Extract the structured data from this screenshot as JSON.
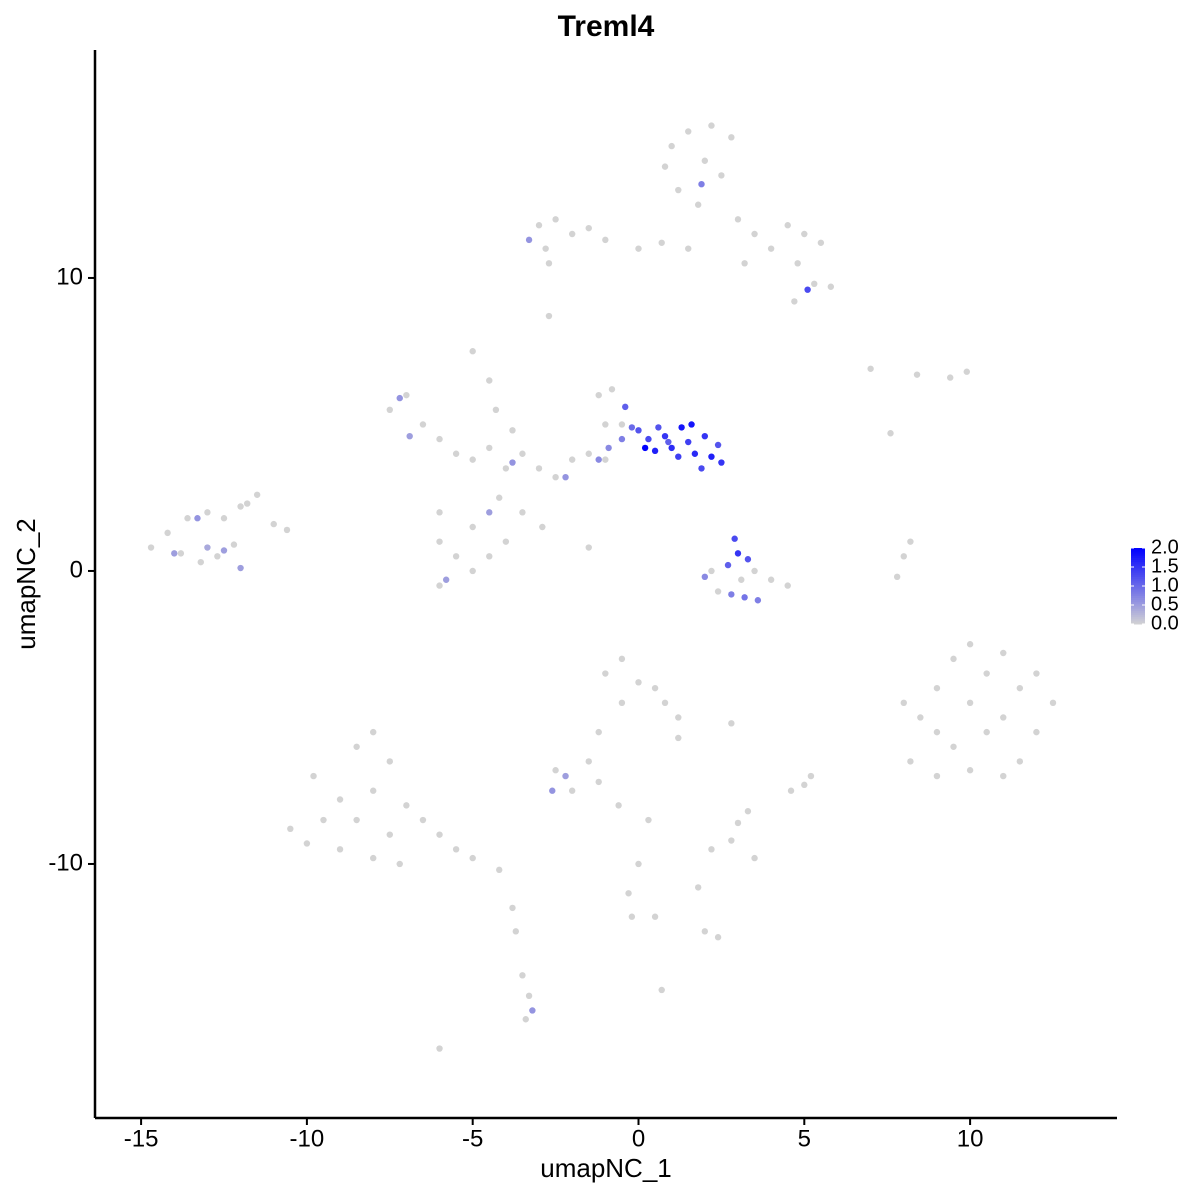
{
  "chart_data": {
    "type": "scatter",
    "title": "Treml4",
    "xlabel": "umapNC_1",
    "ylabel": "umapNC_2",
    "xlim": [
      -16.39,
      14.43
    ],
    "ylim": [
      -18.67,
      17.78
    ],
    "xticks": [
      -15,
      -10,
      -5,
      0,
      5,
      10
    ],
    "yticks": [
      -10,
      0,
      10
    ],
    "x": [
      1,
      1.5,
      2,
      1.2,
      2.5,
      1.8,
      3,
      3.5,
      4,
      4.5,
      5,
      5.5,
      4.8,
      5.3,
      4.7,
      5.8,
      2.2,
      0.8,
      2.8,
      3.2,
      1.5,
      1.9,
      -3,
      -2.5,
      -2,
      -1.5,
      -2.8,
      -1,
      0,
      0.7,
      -3.3,
      -2.7,
      5.1,
      -2.7,
      -14.7,
      -14.2,
      -13.6,
      -13,
      -12.5,
      -12,
      -11.5,
      -11,
      -10.6,
      -13.2,
      -12.7,
      -12.2,
      -13.8,
      -12,
      -13.3,
      -14,
      -13,
      -12.5,
      -11.8,
      -7.5,
      -7,
      -6.5,
      -6,
      -5.5,
      -5,
      -4.5,
      -4,
      -3.5,
      -4.5,
      -4.3,
      -3.8,
      -3,
      -2.5,
      -2,
      -1.5,
      -1,
      -1.2,
      -0.8,
      -0.5,
      -1,
      -6,
      -6,
      -5.5,
      -5,
      -6,
      -5,
      -4.5,
      -4,
      -4.2,
      -3.5,
      -5.8,
      -4.5,
      -7.2,
      -6.9,
      -2.9,
      -1.5,
      -5,
      -3.8,
      -2.2,
      -1.2,
      -0.5,
      -0.9,
      0,
      0.3,
      0.5,
      0.8,
      1,
      1.3,
      1.5,
      1.7,
      2,
      2.2,
      2.5,
      2.4,
      1.2,
      0.2,
      1.9,
      0.6,
      1.6,
      -0.4,
      -0.2,
      0.9,
      2.9,
      3,
      3.3,
      2.7,
      3.5,
      2.2,
      4,
      4.5,
      3.2,
      3.6,
      2.4,
      2,
      3.1,
      2.8,
      8,
      8.2,
      7.8,
      7,
      8.4,
      9.4,
      9.9,
      7.6,
      8,
      8.5,
      9,
      9.5,
      10,
      10.5,
      11,
      11.5,
      12,
      12.5,
      12,
      11.5,
      11,
      10,
      9.5,
      9,
      10,
      10.5,
      11,
      8.2,
      9,
      -10.5,
      -10,
      -9.5,
      -9,
      -8.5,
      -8,
      -7.5,
      -8,
      -8.5,
      -9,
      -8,
      -7.5,
      -7,
      -6.5,
      -6,
      -5.5,
      -5,
      -4.2,
      -9.8,
      -7.2,
      -1,
      -0.5,
      0,
      0.5,
      0.8,
      1.2,
      -0.5,
      -1.2,
      -1.5,
      -2,
      -2.5,
      -2.2,
      -2.6,
      -1.2,
      -0.6,
      0.3,
      0,
      -0.3,
      -0.2,
      0.5,
      2,
      2.4,
      1.8,
      2.2,
      2.8,
      3,
      3.3,
      3.5,
      5,
      5.2,
      4.6,
      2.8,
      1.2,
      -3.8,
      -3.5,
      -3.3,
      -3.2,
      -3.4,
      -6,
      0.7,
      -3.7
    ],
    "y": [
      14.5,
      15,
      14,
      13,
      13.5,
      12.5,
      12,
      11.5,
      11,
      11.8,
      11.5,
      11.2,
      10.5,
      9.8,
      9.2,
      9.7,
      15.2,
      13.8,
      14.8,
      10.5,
      11,
      13.2,
      11.8,
      12,
      11.5,
      11.7,
      11,
      11.3,
      11,
      11.2,
      11.3,
      10.5,
      9.6,
      8.7,
      0.8,
      1.3,
      1.8,
      2,
      1.8,
      2.2,
      2.6,
      1.6,
      1.4,
      0.3,
      0.5,
      0.9,
      0.6,
      0.1,
      1.8,
      0.6,
      0.8,
      0.7,
      2.3,
      5.5,
      6,
      5,
      4.5,
      4,
      3.8,
      4.2,
      3.5,
      4,
      6.5,
      5.5,
      4.8,
      3.5,
      3.2,
      3.8,
      4,
      5,
      6,
      6.2,
      5,
      3.8,
      2,
      1,
      0.5,
      0,
      -0.5,
      1.5,
      0.5,
      1,
      2.5,
      2,
      -0.3,
      2,
      5.9,
      4.6,
      1.5,
      0.8,
      7.5,
      3.7,
      3.2,
      3.8,
      4.5,
      4.2,
      4.8,
      4.5,
      4.1,
      4.6,
      4.2,
      4.9,
      4.4,
      4,
      4.6,
      3.9,
      3.7,
      4.3,
      3.9,
      4.2,
      3.5,
      4.9,
      5,
      5.6,
      4.9,
      4.4,
      1.1,
      0.6,
      0.4,
      0.2,
      0,
      0,
      -0.3,
      -0.5,
      -0.9,
      -1,
      -0.7,
      -0.2,
      -0.3,
      -0.8,
      0.5,
      1,
      -0.2,
      6.9,
      6.7,
      6.6,
      6.8,
      4.7,
      -4.5,
      -5,
      -4,
      -3,
      -2.5,
      -3.5,
      -2.8,
      -4,
      -3.5,
      -4.5,
      -5.5,
      -6.5,
      -7,
      -6.8,
      -6,
      -5.5,
      -4.5,
      -5.5,
      -5,
      -6.5,
      -7,
      -8.8,
      -9.3,
      -8.5,
      -7.8,
      -6,
      -5.5,
      -6.5,
      -7.5,
      -8.5,
      -9.5,
      -9.8,
      -9,
      -8,
      -8.5,
      -9,
      -9.5,
      -9.8,
      -10.2,
      -7,
      -10,
      -3.5,
      -3,
      -3.8,
      -4,
      -4.5,
      -5,
      -4.5,
      -5.5,
      -6.5,
      -7.5,
      -6.8,
      -7,
      -7.5,
      -7.2,
      -8,
      -8.5,
      -10,
      -11,
      -11.8,
      -11.8,
      -12.3,
      -12.5,
      -10.8,
      -9.5,
      -9.2,
      -8.6,
      -8.2,
      -9.8,
      -7.3,
      -7,
      -7.5,
      -5.2,
      -5.7,
      -11.5,
      -13.8,
      -14.5,
      -15,
      -15.3,
      -16.3,
      -14.3,
      -12.3
    ],
    "values": [
      0,
      0,
      0,
      0,
      0,
      0,
      0,
      0,
      0,
      0,
      0,
      0,
      0,
      0,
      0,
      0,
      0,
      0,
      0,
      0,
      0,
      0.8,
      0,
      0,
      0,
      0,
      0,
      0,
      0,
      0,
      0.6,
      0,
      1.3,
      0,
      0,
      0,
      0,
      0,
      0,
      0,
      0,
      0,
      0,
      0,
      0,
      0,
      0,
      0.5,
      0.6,
      0.5,
      0.4,
      0.5,
      0,
      0,
      0,
      0,
      0,
      0,
      0,
      0,
      0,
      0,
      0,
      0,
      0,
      0,
      0,
      0,
      0,
      0,
      0,
      0,
      0,
      0,
      0,
      0,
      0,
      0,
      0,
      0,
      0,
      0,
      0,
      0,
      0.5,
      0.5,
      0.6,
      0.5,
      0,
      0,
      0,
      0.6,
      0.6,
      0.7,
      0.8,
      0.7,
      1.2,
      1.3,
      1.7,
      1.5,
      1.6,
      1.8,
      1.4,
      1.6,
      1.5,
      1.7,
      1.5,
      1.2,
      1.4,
      2.0,
      1.3,
      1.2,
      1.8,
      1.1,
      1.0,
      1.1,
      1.3,
      1.5,
      1.2,
      1.1,
      0,
      0,
      0,
      0,
      0.9,
      0.8,
      0,
      0.7,
      0,
      0.8,
      0,
      0,
      0,
      0,
      0,
      0,
      0,
      0,
      0,
      0,
      0,
      0,
      0,
      0,
      0,
      0,
      0,
      0,
      0,
      0,
      0,
      0,
      0,
      0,
      0,
      0,
      0,
      0,
      0,
      0,
      0,
      0,
      0,
      0,
      0,
      0,
      0,
      0,
      0,
      0,
      0,
      0,
      0,
      0,
      0,
      0,
      0,
      0,
      0,
      0,
      0,
      0,
      0,
      0,
      0,
      0,
      0,
      0,
      0,
      0,
      0.5,
      0.6,
      0,
      0,
      0,
      0,
      0,
      0,
      0,
      0,
      0,
      0,
      0,
      0,
      0,
      0,
      0,
      0,
      0,
      0,
      0,
      0,
      0,
      0,
      0,
      0.6,
      0,
      0,
      0,
      0
    ],
    "colorbar": {
      "lim": [
        0,
        2
      ],
      "colors": [
        "#d3d3d3",
        "#0000ff"
      ],
      "ticks": [
        {
          "value": 0,
          "label": "0.0"
        },
        0.5,
        {
          "value": 1,
          "label": "1.0"
        },
        1.5,
        {
          "value": 2,
          "label": "2.0"
        }
      ]
    }
  }
}
